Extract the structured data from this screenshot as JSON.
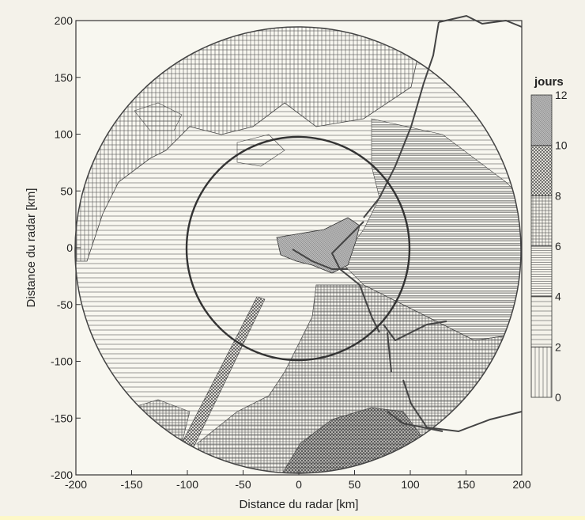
{
  "map": {
    "xlabel": "Distance du radar [km]",
    "ylabel": "Distance du radar [km]",
    "x_ticks": [
      "-200",
      "-150",
      "-100",
      "-50",
      "0",
      "50",
      "100",
      "150",
      "200"
    ],
    "y_ticks": [
      "200",
      "150",
      "100",
      "50",
      "0",
      "-50",
      "-100",
      "-150",
      "-200"
    ],
    "x_range_km": [
      -200,
      200
    ],
    "y_range_km": [
      -200,
      200
    ],
    "outer_circle_radius_km": 200,
    "inner_circle_radius_km": 100
  },
  "legend": {
    "title": "jours",
    "ticks": [
      "12",
      "10",
      "8",
      "6",
      "4",
      "2",
      "0"
    ],
    "bins": [
      {
        "range": "0-2",
        "pattern": "vertical-lines"
      },
      {
        "range": "2-4",
        "pattern": "horizontal-lines-sparse"
      },
      {
        "range": "4-6",
        "pattern": "horizontal-lines-dense"
      },
      {
        "range": "6-8",
        "pattern": "grid"
      },
      {
        "range": "8-10",
        "pattern": "cross-hatch"
      },
      {
        "range": "10-12",
        "pattern": "dense-dots"
      }
    ]
  },
  "colors": {
    "page_background": "#fdf8c8",
    "figure_background": "#f4f2ea",
    "ink": "#333333"
  }
}
